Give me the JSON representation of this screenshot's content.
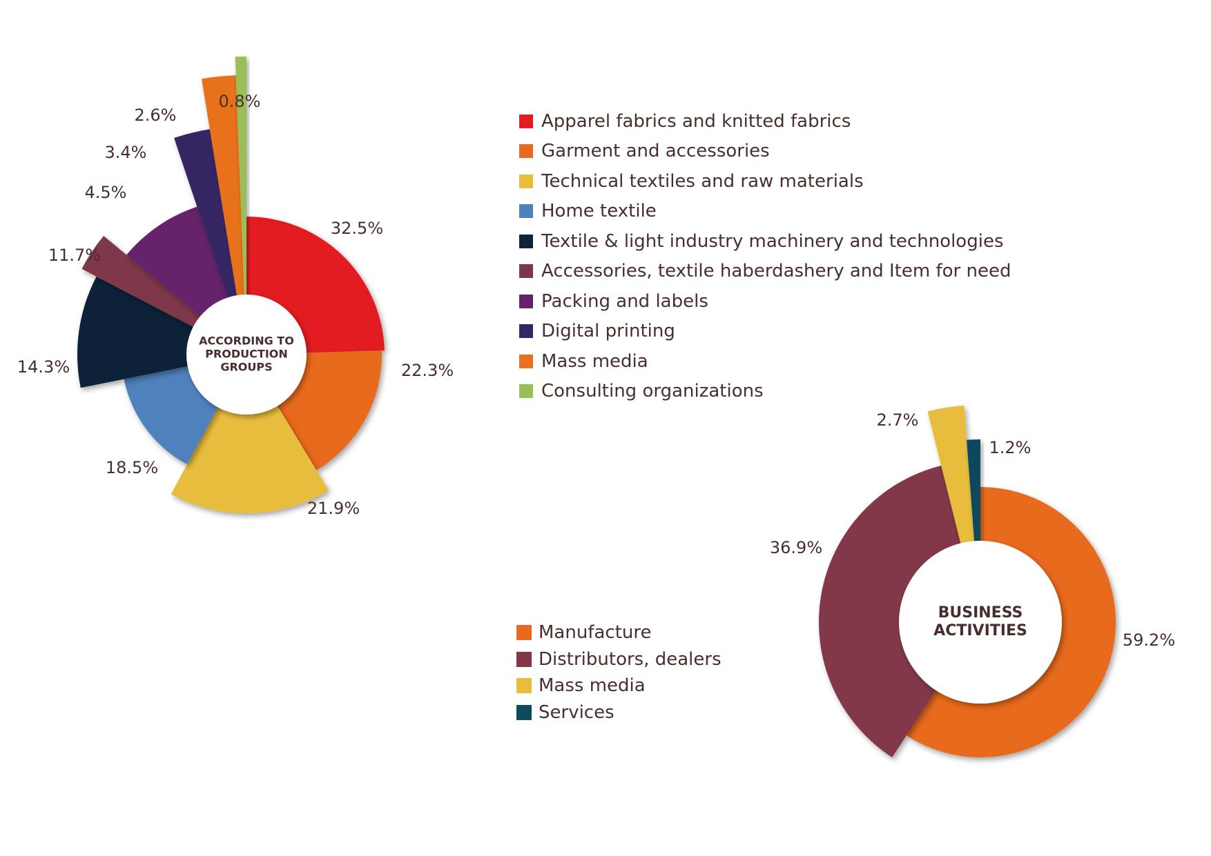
{
  "chart_data": [
    {
      "type": "pie",
      "center_label": [
        "ACCORDING TO",
        "PRODUCTION",
        "GROUPS"
      ],
      "legend_placement": "right",
      "slices": [
        {
          "label": "Apparel fabrics and knitted fabrics",
          "value": 32.5,
          "value_label": "32.5%",
          "color": "#e31b23"
        },
        {
          "label": "Garment and accessories",
          "value": 22.3,
          "value_label": "22.3%",
          "color": "#e86a1f"
        },
        {
          "label": "Technical textiles and raw materials",
          "value": 21.9,
          "value_label": "21.9%",
          "color": "#e8bd3c"
        },
        {
          "label": "Home textile",
          "value": 18.5,
          "value_label": "18.5%",
          "color": "#4f81bd"
        },
        {
          "label": "Textile & light industry machinery and technologies",
          "value": 14.3,
          "value_label": "14.3%",
          "color": "#0f2437"
        },
        {
          "label": "Accessories, textile haberdashery and Item for need",
          "value": 4.5,
          "value_label": "4.5%",
          "color": "#7e3748"
        },
        {
          "label": "Packing and labels",
          "value": 11.7,
          "value_label": "11.7%",
          "color": "#66226b"
        },
        {
          "label": "Digital printing",
          "value": 3.4,
          "value_label": "3.4%",
          "color": "#352763"
        },
        {
          "label": "Mass media",
          "value": 2.6,
          "value_label": "2.6%",
          "color": "#e8711f"
        },
        {
          "label": "Consulting organizations",
          "value": 0.8,
          "value_label": "0.8%",
          "color": "#9bbf57"
        }
      ]
    },
    {
      "type": "pie",
      "center_label": [
        "BUSINESS",
        "ACTIVITIES"
      ],
      "legend_placement": "left",
      "slices": [
        {
          "label": "Manufacture",
          "value": 59.2,
          "value_label": "59.2%",
          "color": "#e86a1f"
        },
        {
          "label": "Distributors, dealers",
          "value": 36.9,
          "value_label": "36.9%",
          "color": "#823748"
        },
        {
          "label": "Mass media",
          "value": 2.7,
          "value_label": "2.7%",
          "color": "#e8bd3c"
        },
        {
          "label": "Services",
          "value": 1.2,
          "value_label": "1.2%",
          "color": "#0e4a5c"
        }
      ]
    }
  ]
}
